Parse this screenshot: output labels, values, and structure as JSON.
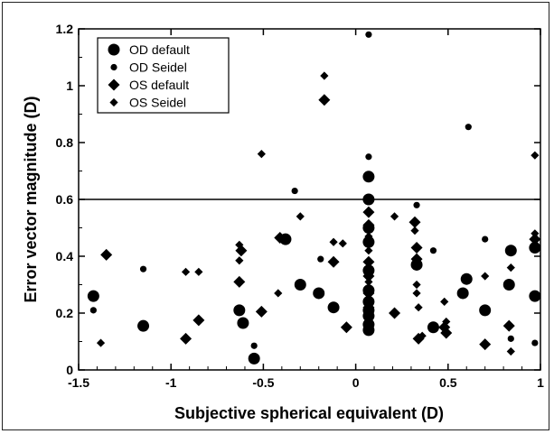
{
  "chart_data": {
    "type": "scatter",
    "xlabel": "Subjective spherical equivalent (D)",
    "ylabel": "Error vector magnitude (D)",
    "xlim": [
      -1.5,
      1
    ],
    "ylim": [
      0,
      1.2
    ],
    "xticks": [
      -1.5,
      -1,
      -0.5,
      0,
      0.5,
      1
    ],
    "xtick_labels": [
      "-1.5",
      "-1",
      "-0.5",
      "0",
      "0.5",
      "1"
    ],
    "yticks": [
      0,
      0.2,
      0.4,
      0.6,
      0.8,
      1,
      1.2
    ],
    "ytick_labels": [
      "0",
      "0.2",
      "0.4",
      "0.6",
      "0.8",
      "1",
      "1.2"
    ],
    "reference_line": {
      "y": 0.6
    },
    "grid": false,
    "legend_position": "top-left",
    "series": [
      {
        "name": "OD default",
        "marker": "large-circle",
        "points": [
          [
            -1.42,
            0.26
          ],
          [
            -1.15,
            0.155
          ],
          [
            -0.63,
            0.21
          ],
          [
            -0.61,
            0.165
          ],
          [
            -0.55,
            0.04
          ],
          [
            -0.38,
            0.46
          ],
          [
            -0.3,
            0.3
          ],
          [
            -0.2,
            0.27
          ],
          [
            -0.12,
            0.22
          ],
          [
            0.07,
            0.68
          ],
          [
            0.07,
            0.6
          ],
          [
            0.07,
            0.5
          ],
          [
            0.07,
            0.45
          ],
          [
            0.07,
            0.35
          ],
          [
            0.07,
            0.28
          ],
          [
            0.07,
            0.24
          ],
          [
            0.07,
            0.21
          ],
          [
            0.07,
            0.19
          ],
          [
            0.07,
            0.16
          ],
          [
            0.07,
            0.14
          ],
          [
            0.33,
            0.37
          ],
          [
            0.42,
            0.15
          ],
          [
            0.58,
            0.27
          ],
          [
            0.6,
            0.32
          ],
          [
            0.7,
            0.21
          ],
          [
            0.83,
            0.3
          ],
          [
            0.84,
            0.42
          ],
          [
            0.97,
            0.43
          ],
          [
            0.97,
            0.26
          ]
        ]
      },
      {
        "name": "OD Seidel",
        "marker": "small-circle",
        "points": [
          [
            -1.42,
            0.21
          ],
          [
            -1.15,
            0.355
          ],
          [
            -0.55,
            0.085
          ],
          [
            -0.33,
            0.63
          ],
          [
            -0.19,
            0.39
          ],
          [
            0.07,
            1.18
          ],
          [
            0.07,
            0.75
          ],
          [
            0.33,
            0.58
          ],
          [
            0.42,
            0.42
          ],
          [
            0.61,
            0.855
          ],
          [
            0.7,
            0.46
          ],
          [
            0.84,
            0.11
          ],
          [
            0.97,
            0.095
          ]
        ]
      },
      {
        "name": "OS default",
        "marker": "large-diamond",
        "points": [
          [
            -1.35,
            0.405
          ],
          [
            -0.92,
            0.11
          ],
          [
            -0.85,
            0.175
          ],
          [
            -0.62,
            0.42
          ],
          [
            -0.63,
            0.31
          ],
          [
            -0.51,
            0.205
          ],
          [
            -0.41,
            0.465
          ],
          [
            -0.17,
            0.95
          ],
          [
            -0.12,
            0.38
          ],
          [
            -0.05,
            0.15
          ],
          [
            0.07,
            0.555
          ],
          [
            0.07,
            0.51
          ],
          [
            0.07,
            0.38
          ],
          [
            0.07,
            0.33
          ],
          [
            0.07,
            0.27
          ],
          [
            0.07,
            0.22
          ],
          [
            0.21,
            0.2
          ],
          [
            0.32,
            0.52
          ],
          [
            0.33,
            0.43
          ],
          [
            0.33,
            0.39
          ],
          [
            0.34,
            0.11
          ],
          [
            0.48,
            0.15
          ],
          [
            0.49,
            0.13
          ],
          [
            0.7,
            0.09
          ],
          [
            0.83,
            0.155
          ],
          [
            0.97,
            0.46
          ]
        ]
      },
      {
        "name": "OS Seidel",
        "marker": "small-diamond",
        "points": [
          [
            -1.38,
            0.095
          ],
          [
            -0.92,
            0.345
          ],
          [
            -0.85,
            0.345
          ],
          [
            -0.63,
            0.44
          ],
          [
            -0.63,
            0.385
          ],
          [
            -0.51,
            0.76
          ],
          [
            -0.42,
            0.27
          ],
          [
            -0.3,
            0.54
          ],
          [
            -0.17,
            1.035
          ],
          [
            -0.12,
            0.45
          ],
          [
            -0.07,
            0.445
          ],
          [
            0.07,
            0.56
          ],
          [
            0.07,
            0.47
          ],
          [
            0.07,
            0.42
          ],
          [
            0.07,
            0.31
          ],
          [
            0.21,
            0.54
          ],
          [
            0.32,
            0.49
          ],
          [
            0.33,
            0.3
          ],
          [
            0.33,
            0.27
          ],
          [
            0.34,
            0.22
          ],
          [
            0.36,
            0.12
          ],
          [
            0.48,
            0.24
          ],
          [
            0.49,
            0.17
          ],
          [
            0.7,
            0.33
          ],
          [
            0.84,
            0.36
          ],
          [
            0.84,
            0.065
          ],
          [
            0.97,
            0.755
          ],
          [
            0.97,
            0.48
          ]
        ]
      }
    ]
  }
}
